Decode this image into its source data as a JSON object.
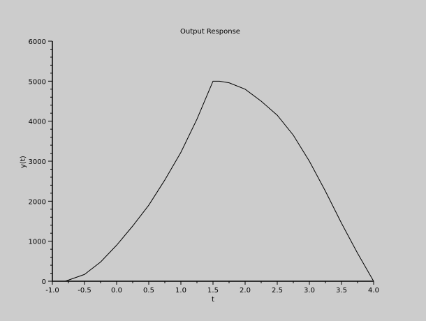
{
  "chart_data": {
    "type": "line",
    "title": "Output Response",
    "xlabel": "t",
    "ylabel": "y(t)",
    "xlim": [
      -1.0,
      4.0
    ],
    "ylim": [
      0,
      6000
    ],
    "grid": false,
    "x_ticks": [
      "-1.0",
      "-0.5",
      "0.0",
      "0.5",
      "1.0",
      "1.5",
      "2.0",
      "2.5",
      "3.0",
      "3.5",
      "4.0"
    ],
    "y_ticks": [
      "0",
      "1000",
      "2000",
      "3000",
      "4000",
      "5000",
      "6000"
    ],
    "series": [
      {
        "color": "#000000",
        "x": [
          -0.8,
          -0.5,
          -0.25,
          0.0,
          0.25,
          0.5,
          0.75,
          1.0,
          1.25,
          1.5,
          1.6,
          1.75,
          2.0,
          2.25,
          2.5,
          2.75,
          3.0,
          3.25,
          3.5,
          3.75,
          4.0
        ],
        "y": [
          0,
          170,
          480,
          900,
          1380,
          1900,
          2530,
          3220,
          4050,
          5000,
          5000,
          4960,
          4800,
          4500,
          4150,
          3650,
          3000,
          2250,
          1450,
          700,
          0
        ]
      }
    ]
  },
  "colors": {
    "background": "#cccccc",
    "line": "#000000"
  }
}
